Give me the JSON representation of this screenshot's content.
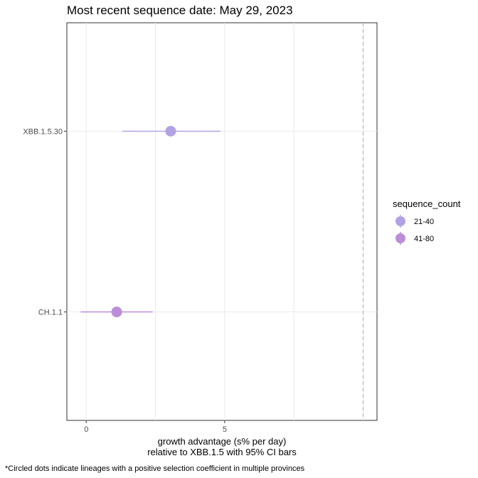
{
  "chart_data": {
    "type": "scatter",
    "title": "Most recent sequence date: May 29, 2023",
    "xlabel_line1": "growth advantage (s% per day)",
    "xlabel_line2": "relative to  XBB.1.5  with 95% CI bars",
    "ylabel": "",
    "xlim": [
      -0.7,
      10.5
    ],
    "x_ticks": [
      0,
      5
    ],
    "x_tick_labels": [
      "0",
      "5"
    ],
    "reference_line_x": 10,
    "categories": [
      "CH.1.1",
      "XBB.1.5.30"
    ],
    "points": [
      {
        "lineage": "XBB.1.5.30",
        "value": 3.05,
        "ci_low": 1.3,
        "ci_high": 4.85,
        "sequence_count": "21-40"
      },
      {
        "lineage": "CH.1.1",
        "value": 1.1,
        "ci_low": -0.2,
        "ci_high": 2.4,
        "sequence_count": "41-80"
      }
    ],
    "legend": {
      "title": "sequence_count",
      "position": "right",
      "entries": [
        {
          "label": "21-40",
          "color": "#b3a2e3"
        },
        {
          "label": "41-80",
          "color": "#bc8ed8"
        }
      ]
    },
    "grid": true
  },
  "footnote": "*Circled dots indicate lineages with a positive selection coefficient in multiple provinces"
}
